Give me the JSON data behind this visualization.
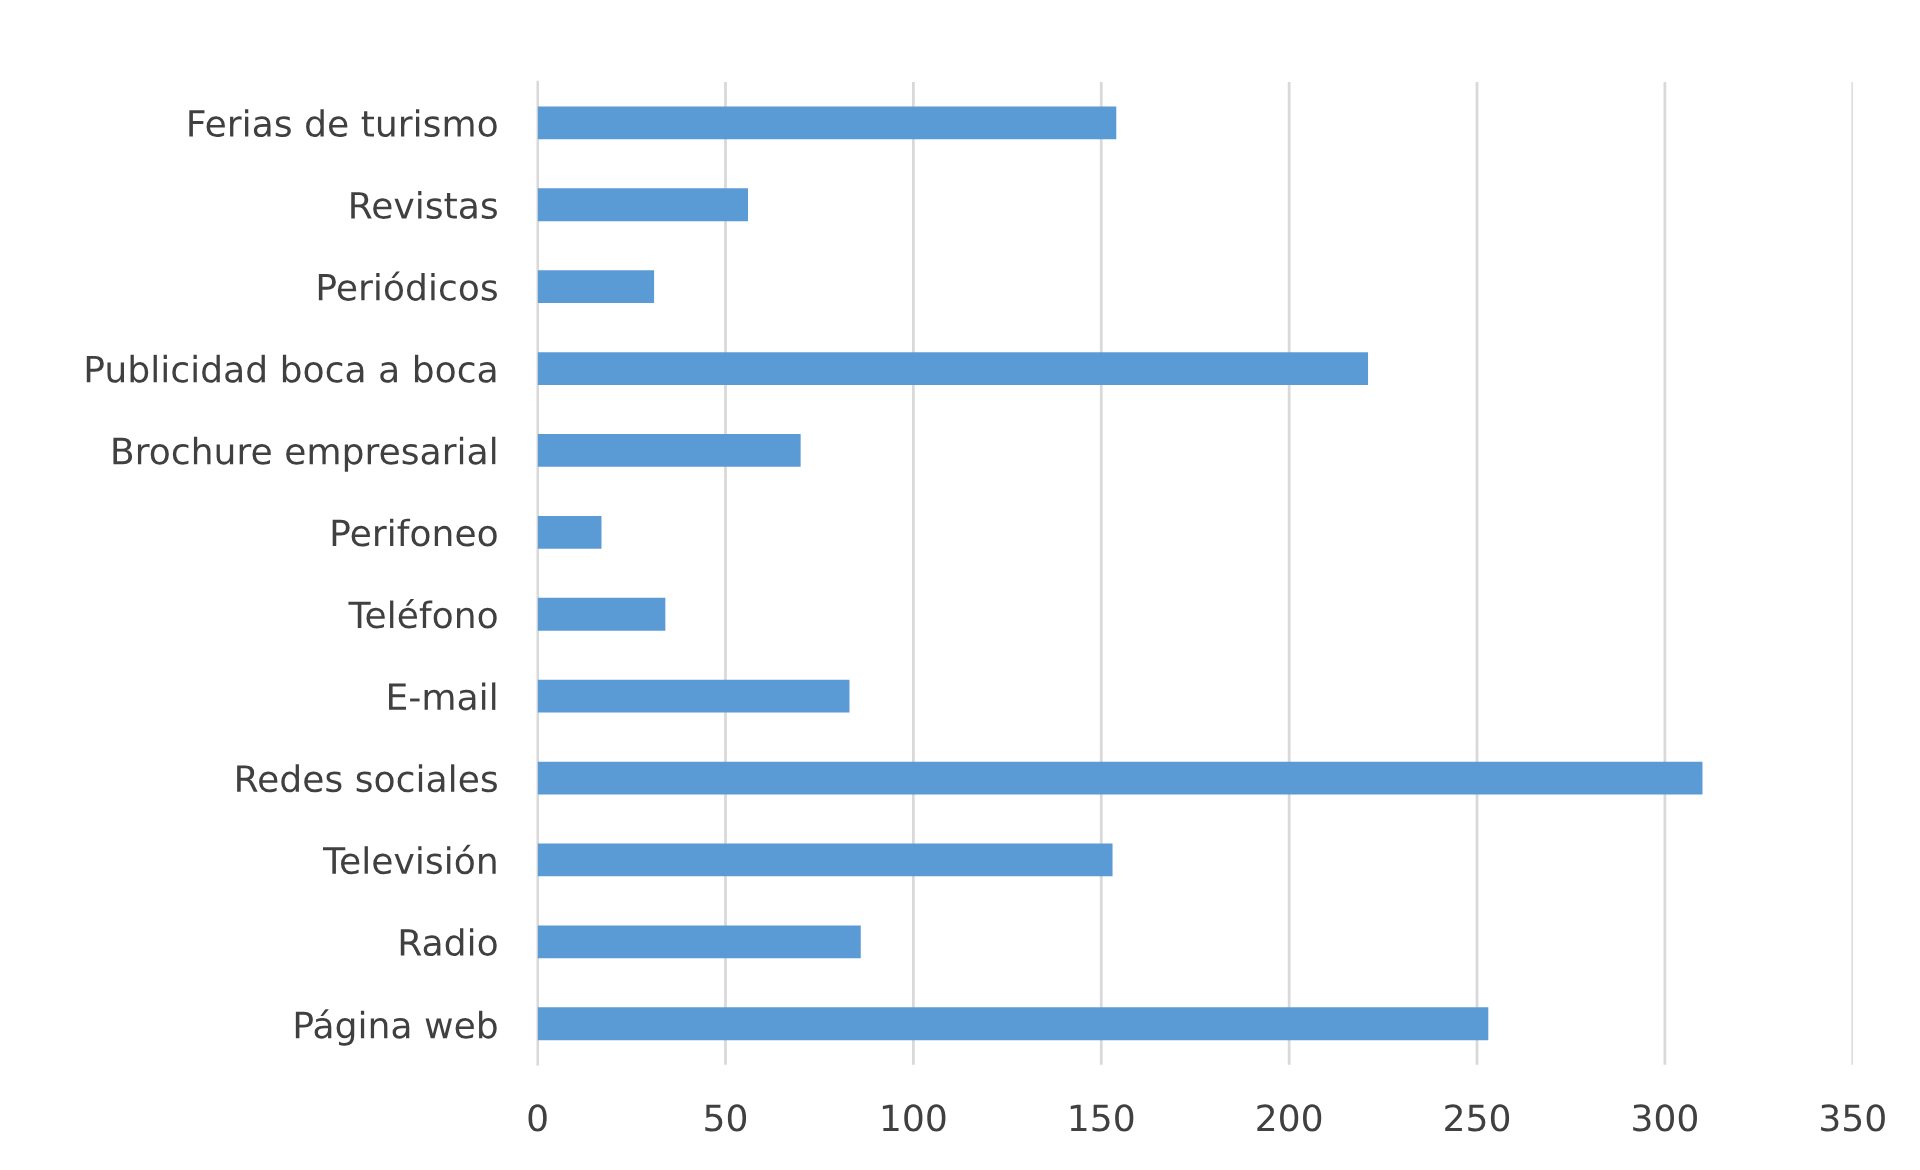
{
  "chart_data": {
    "type": "bar",
    "orientation": "horizontal",
    "categories": [
      "Ferias de turismo",
      "Revistas",
      "Periódicos",
      "Publicidad boca a boca",
      "Brochure empresarial",
      "Perifoneo",
      "Teléfono",
      "E-mail",
      "Redes sociales",
      "Televisión",
      "Radio",
      "Página web"
    ],
    "values": [
      154,
      56,
      31,
      221,
      70,
      17,
      34,
      83,
      310,
      153,
      86,
      253
    ],
    "color": "#5b9bd5",
    "xlim": [
      0,
      350
    ],
    "xticks": [
      0,
      50,
      100,
      150,
      200,
      250,
      300,
      350
    ],
    "grid": "x",
    "legend": false
  }
}
